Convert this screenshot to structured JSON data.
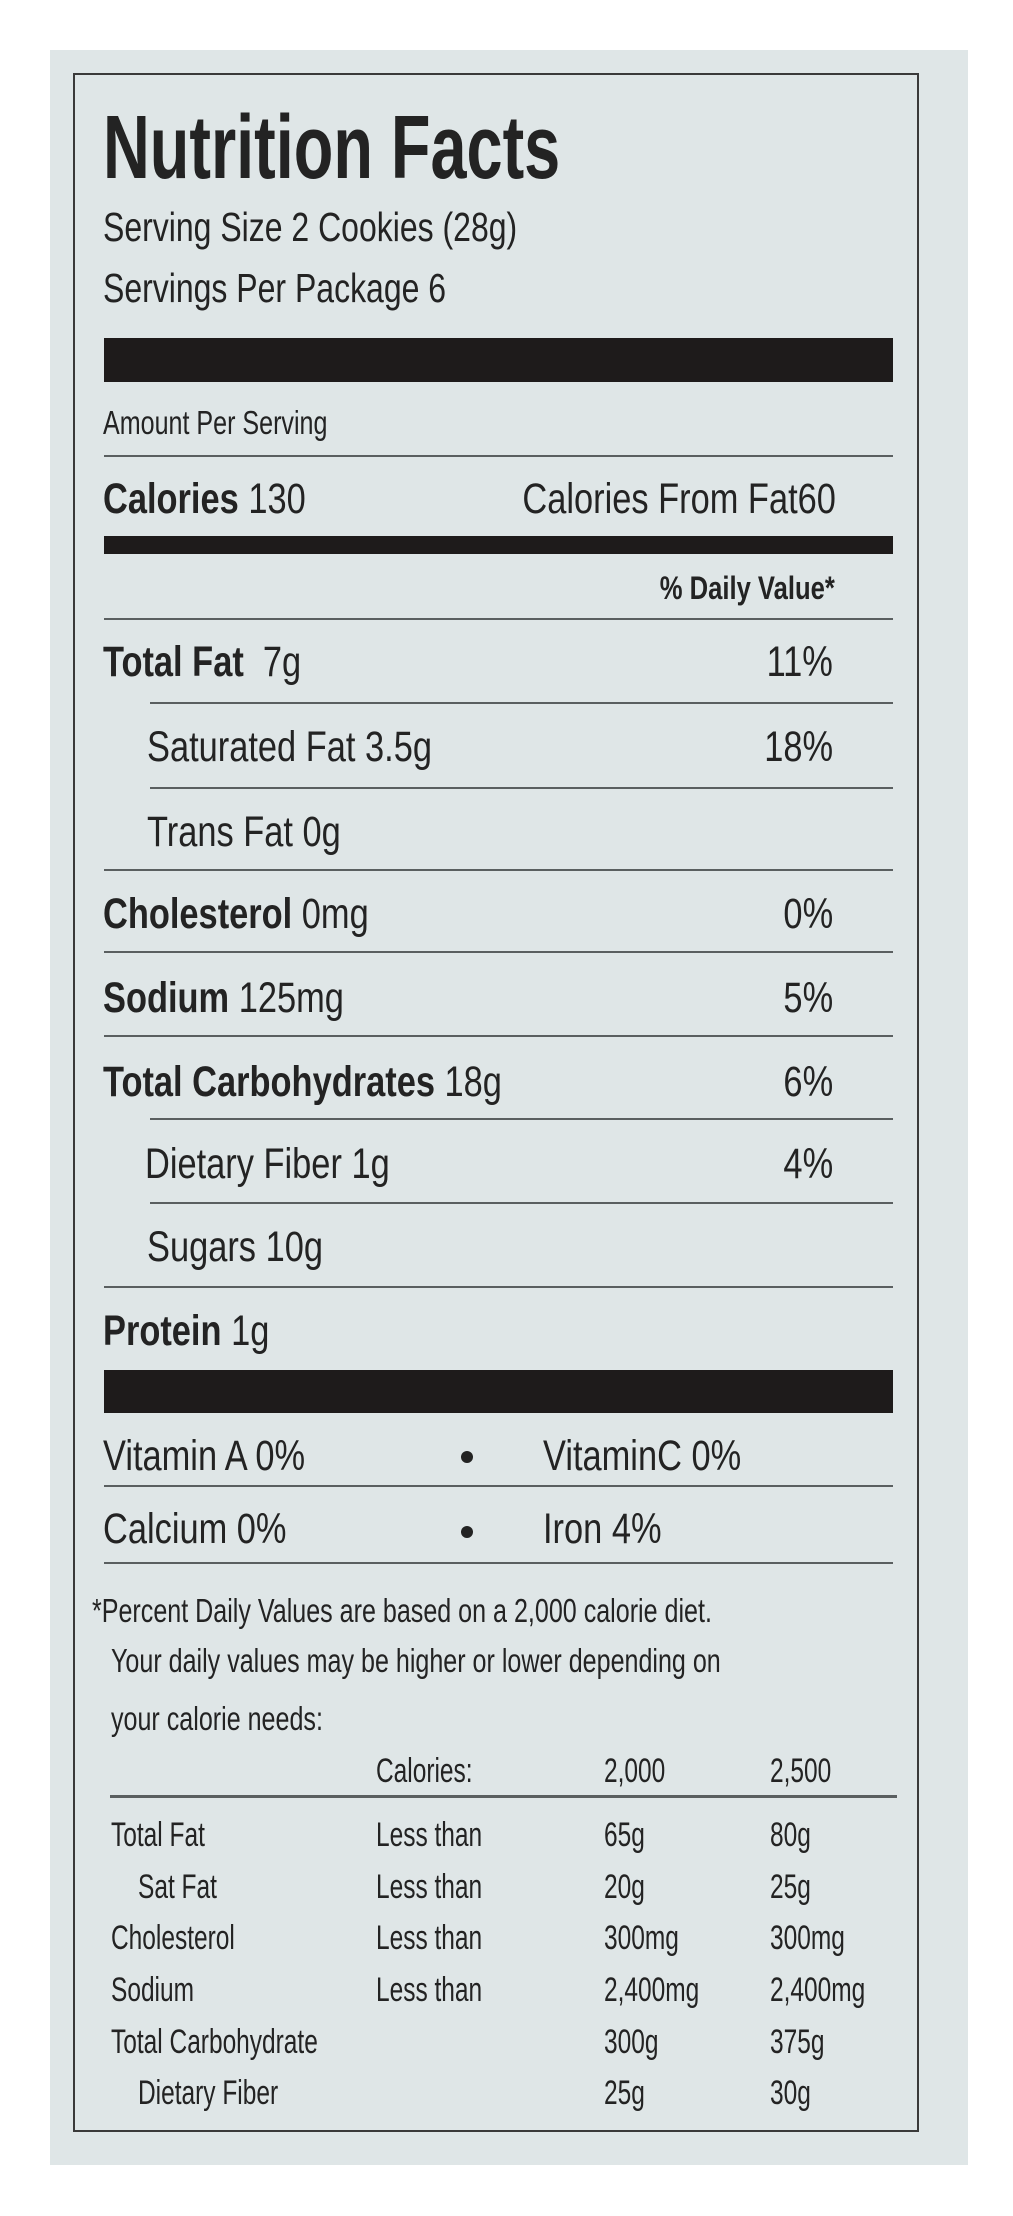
{
  "title": "Nutrition Facts",
  "serving_size": "Serving Size 2 Cookies (28g)",
  "servings_per_package": "Servings Per Package 6",
  "amount_per_serving": "Amount Per Serving",
  "calories": {
    "label": "Calories",
    "value": "130",
    "from_fat_label": "Calories From Fat",
    "from_fat_value": "60"
  },
  "daily_value_header": "% Daily Value*",
  "nutrients": [
    {
      "label": "Total Fat",
      "amount": "7g",
      "dv": "11%"
    },
    {
      "label": "Saturated Fat",
      "amount": "3.5g",
      "dv": "18%"
    },
    {
      "label": "Trans Fat",
      "amount": "0g",
      "dv": ""
    },
    {
      "label": "Cholesterol",
      "amount": "0mg",
      "dv": "0%"
    },
    {
      "label": "Sodium",
      "amount": "125mg",
      "dv": "5%"
    },
    {
      "label": "Total Carbohydrates",
      "amount": "18g",
      "dv": "6%"
    },
    {
      "label": "Dietary Fiber",
      "amount": "1g",
      "dv": "4%"
    },
    {
      "label": "Sugars",
      "amount": "10g",
      "dv": ""
    },
    {
      "label": "Protein",
      "amount": "1g",
      "dv": ""
    }
  ],
  "vitamins": [
    {
      "label": "Vitamin A 0%"
    },
    {
      "label": "VitaminC 0%"
    },
    {
      "label": "Calcium 0%"
    },
    {
      "label": "Iron 4%"
    }
  ],
  "footnote": [
    "*Percent Daily Values are based on a 2,000 calorie diet.",
    "Your daily values may be higher or lower depending on",
    "your calorie needs:"
  ],
  "dv_table": {
    "header": [
      "Calories:",
      "2,000",
      "2,500"
    ],
    "rows": [
      [
        "Total Fat",
        "Less than",
        "65g",
        "80g"
      ],
      [
        "Sat Fat",
        "Less than",
        "20g",
        "25g"
      ],
      [
        "Cholesterol",
        "Less than",
        "300mg",
        "300mg"
      ],
      [
        "Sodium",
        "Less than",
        "2,400mg",
        "2,400mg"
      ],
      [
        "Total Carbohydrate",
        "",
        "300g",
        "375g"
      ],
      [
        "Dietary Fiber",
        "",
        "25g",
        "30g"
      ]
    ]
  }
}
